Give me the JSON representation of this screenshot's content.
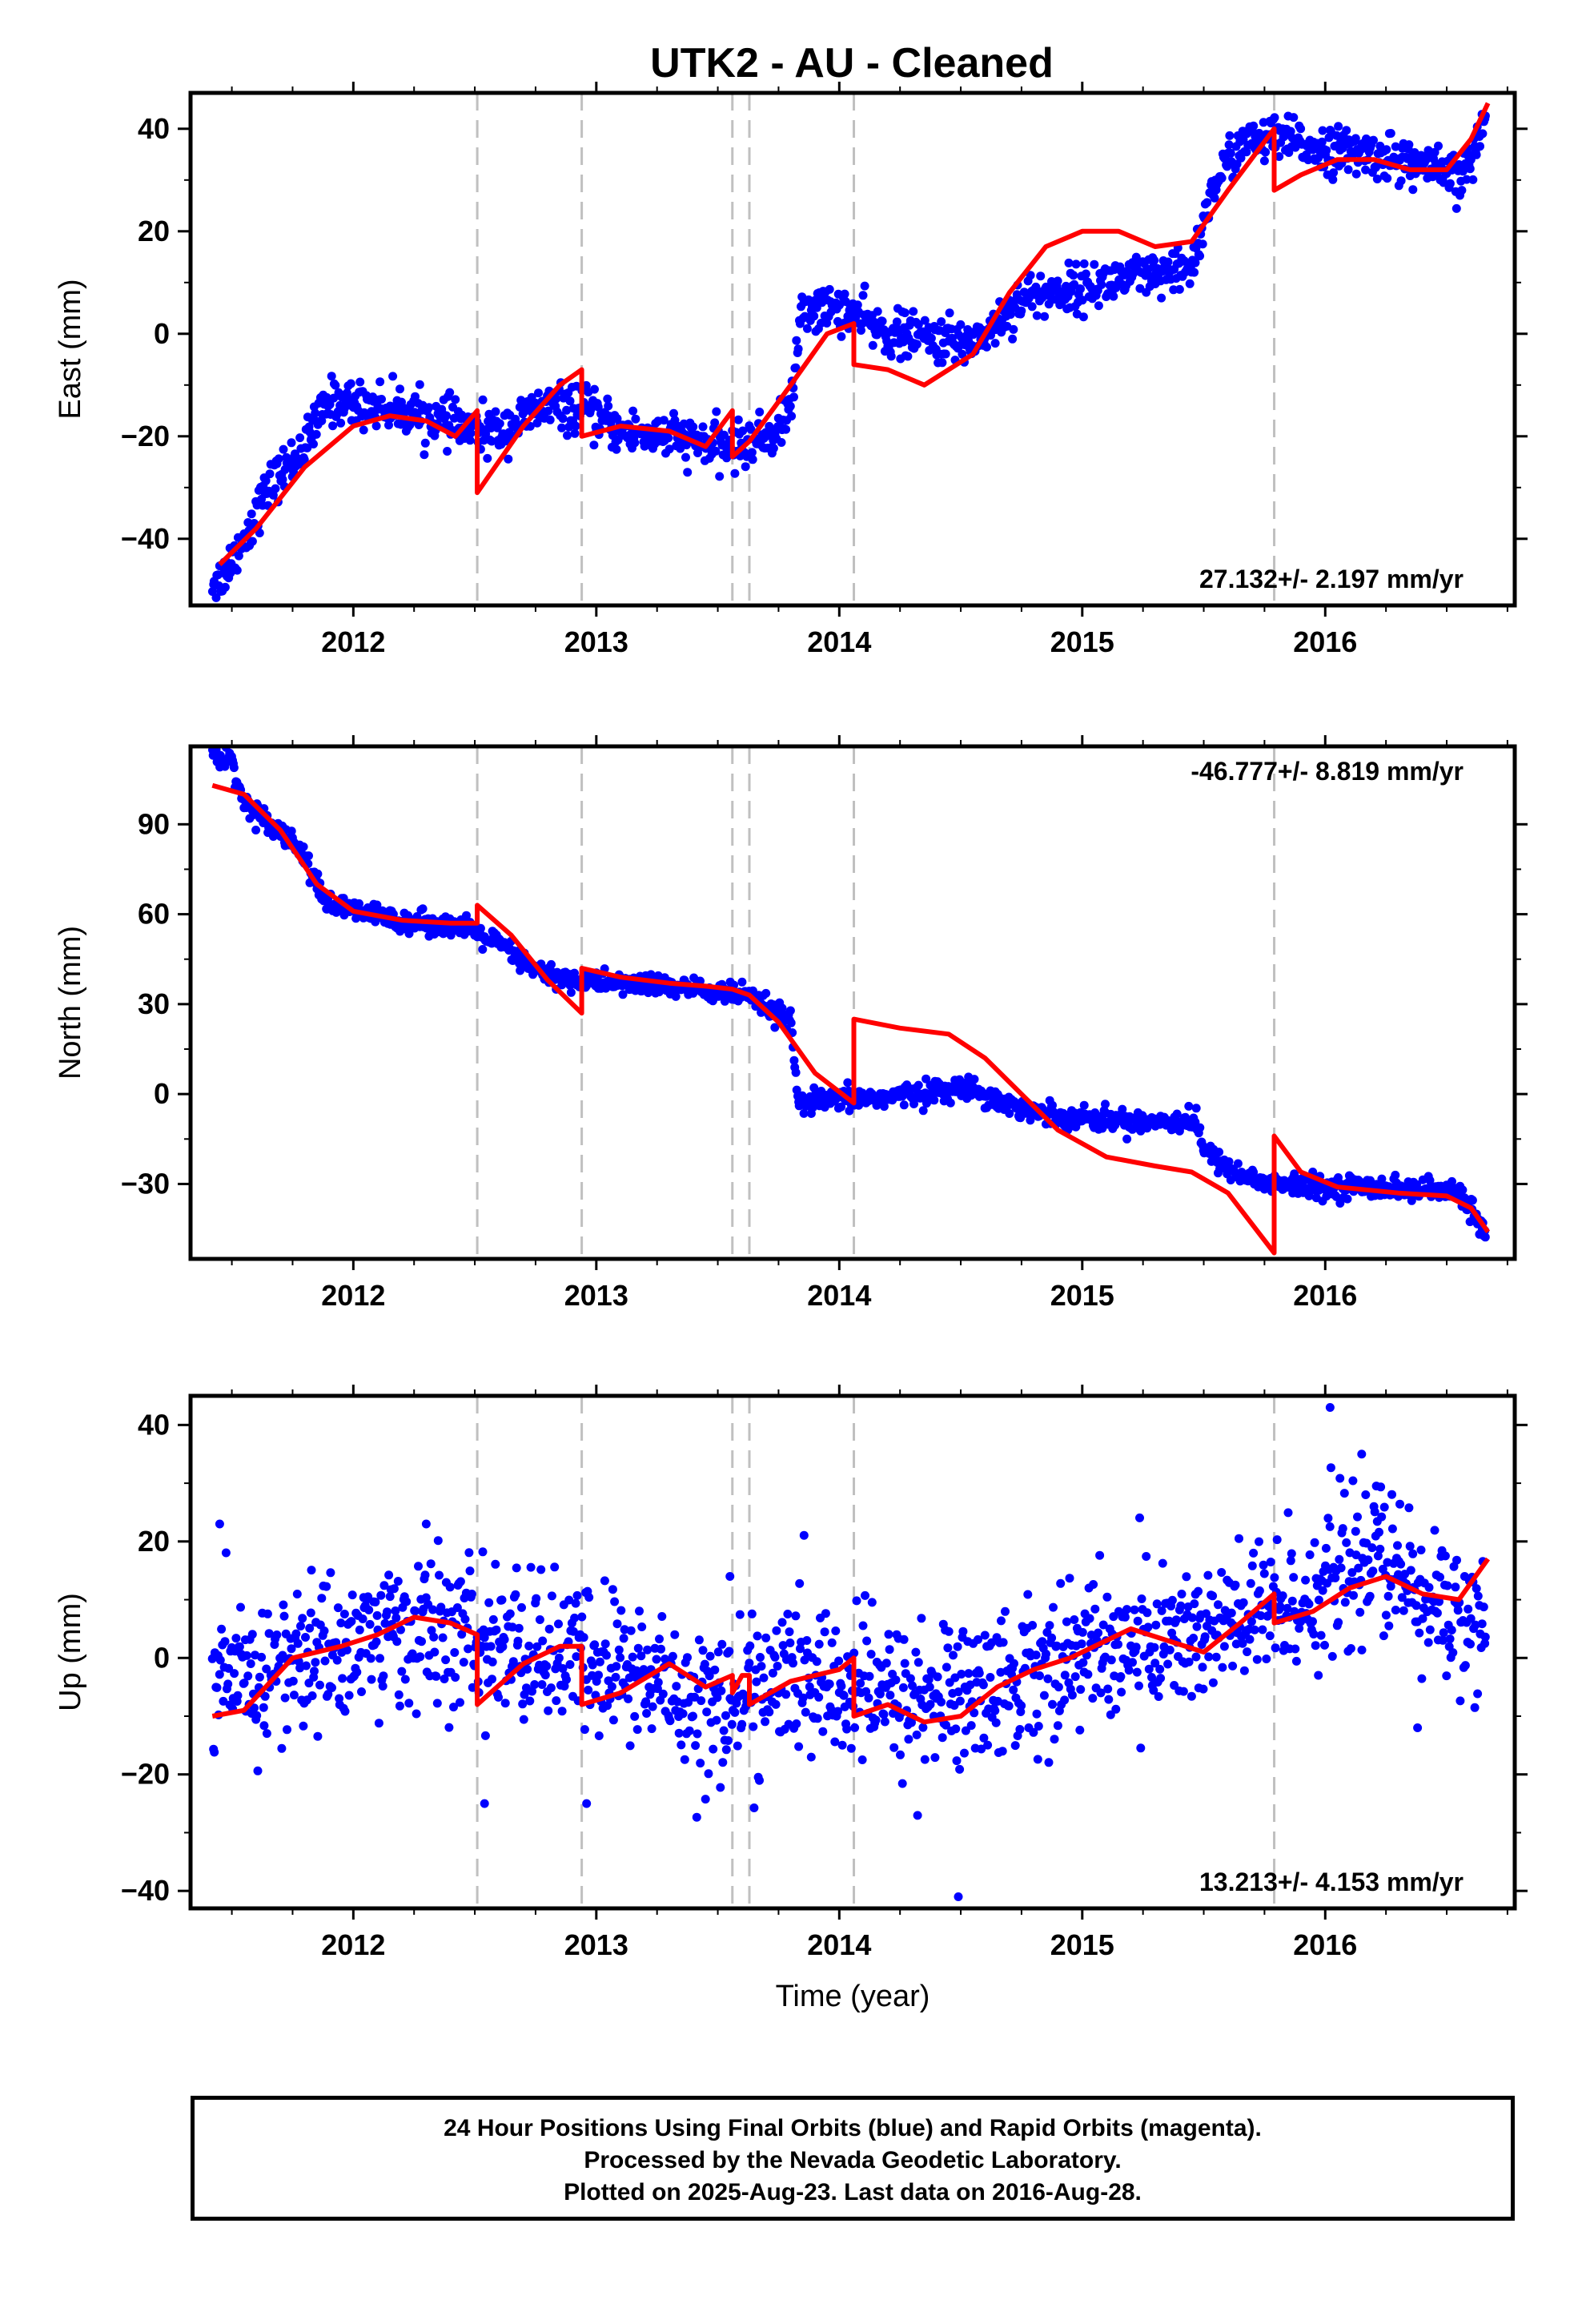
{
  "title": "UTK2  - AU - Cleaned",
  "caption": {
    "line1": "24 Hour Positions Using Final Orbits (blue) and Rapid Orbits (magenta).",
    "line2": "Processed by the Nevada Geodetic Laboratory.",
    "line3": "Plotted on 2025-Aug-23. Last data on 2016-Aug-28."
  },
  "colors": {
    "data_points": "#0000ff",
    "model_fit": "#ff0000",
    "offset_lines": "#c0c0c0",
    "frame": "#000000"
  },
  "chart_data": [
    {
      "type": "scatter",
      "component": "east",
      "ylabel": "East (mm)",
      "xlabel": "",
      "xlim": [
        2011.33,
        2016.78
      ],
      "ylim": [
        -53,
        47
      ],
      "xticks": [
        2012,
        2013,
        2014,
        2015,
        2016
      ],
      "yticks": [
        -40,
        -20,
        0,
        20,
        40
      ],
      "rate_label": "27.132+/- 2.197 mm/yr",
      "rate_position": "bottom-right",
      "offset_epochs": [
        2012.51,
        2012.94,
        2013.56,
        2013.63,
        2014.06,
        2015.79
      ],
      "observed_trend": [
        [
          2011.45,
          -48
        ],
        [
          2011.55,
          -40
        ],
        [
          2011.65,
          -30
        ],
        [
          2011.8,
          -22
        ],
        [
          2011.9,
          -13
        ],
        [
          2012.1,
          -14
        ],
        [
          2012.3,
          -16
        ],
        [
          2012.5,
          -19
        ],
        [
          2012.6,
          -19
        ],
        [
          2012.8,
          -14
        ],
        [
          2012.95,
          -15
        ],
        [
          2013.1,
          -19
        ],
        [
          2013.3,
          -20
        ],
        [
          2013.5,
          -22
        ],
        [
          2013.6,
          -22
        ],
        [
          2013.75,
          -19
        ],
        [
          2013.8,
          -14
        ],
        [
          2013.85,
          5
        ],
        [
          2014.0,
          5
        ],
        [
          2014.2,
          0
        ],
        [
          2014.4,
          -1
        ],
        [
          2014.5,
          -2
        ],
        [
          2014.6,
          0
        ],
        [
          2014.75,
          7
        ],
        [
          2015.0,
          9
        ],
        [
          2015.2,
          11
        ],
        [
          2015.35,
          11
        ],
        [
          2015.45,
          13
        ],
        [
          2015.55,
          30
        ],
        [
          2015.65,
          37
        ],
        [
          2015.79,
          38
        ],
        [
          2016.0,
          36
        ],
        [
          2016.2,
          35
        ],
        [
          2016.4,
          33
        ],
        [
          2016.55,
          30
        ],
        [
          2016.62,
          36
        ],
        [
          2016.66,
          42
        ]
      ],
      "noise_mm": 2.2,
      "model": [
        [
          2011.45,
          -45
        ],
        [
          2011.6,
          -38
        ],
        [
          2011.8,
          -26
        ],
        [
          2012.0,
          -18
        ],
        [
          2012.15,
          -16
        ],
        [
          2012.3,
          -17
        ],
        [
          2012.42,
          -20
        ],
        [
          2012.51,
          -15
        ],
        [
          2012.51,
          -31
        ],
        [
          2012.7,
          -18
        ],
        [
          2012.85,
          -10
        ],
        [
          2012.94,
          -7
        ],
        [
          2012.94,
          -20
        ],
        [
          2013.1,
          -18
        ],
        [
          2013.3,
          -19
        ],
        [
          2013.45,
          -22
        ],
        [
          2013.56,
          -15
        ],
        [
          2013.56,
          -24
        ],
        [
          2013.63,
          -21
        ],
        [
          2013.63,
          -21
        ],
        [
          2013.8,
          -10
        ],
        [
          2013.95,
          0
        ],
        [
          2014.06,
          2
        ],
        [
          2014.06,
          -6
        ],
        [
          2014.2,
          -7
        ],
        [
          2014.35,
          -10
        ],
        [
          2014.55,
          -4
        ],
        [
          2014.7,
          8
        ],
        [
          2014.85,
          17
        ],
        [
          2015.0,
          20
        ],
        [
          2015.15,
          20
        ],
        [
          2015.3,
          17
        ],
        [
          2015.45,
          18
        ],
        [
          2015.6,
          28
        ],
        [
          2015.79,
          40
        ],
        [
          2015.79,
          28
        ],
        [
          2015.9,
          31
        ],
        [
          2016.05,
          34
        ],
        [
          2016.2,
          34
        ],
        [
          2016.35,
          32
        ],
        [
          2016.5,
          32
        ],
        [
          2016.6,
          38
        ],
        [
          2016.67,
          45
        ]
      ]
    },
    {
      "type": "scatter",
      "component": "north",
      "ylabel": "North (mm)",
      "xlabel": "",
      "xlim": [
        2011.33,
        2016.78
      ],
      "ylim": [
        -55,
        116
      ],
      "xticks": [
        2012,
        2013,
        2014,
        2015,
        2016
      ],
      "yticks": [
        -30,
        0,
        30,
        60,
        90
      ],
      "rate_label": "-46.777+/- 8.819 mm/yr",
      "rate_position": "top-right",
      "offset_epochs": [
        2012.51,
        2012.94,
        2013.56,
        2013.63,
        2014.06,
        2015.79
      ],
      "observed_trend": [
        [
          2011.42,
          114
        ],
        [
          2011.5,
          111
        ],
        [
          2011.55,
          97
        ],
        [
          2011.7,
          88
        ],
        [
          2011.8,
          80
        ],
        [
          2011.88,
          64
        ],
        [
          2012.0,
          61
        ],
        [
          2012.2,
          58
        ],
        [
          2012.4,
          56
        ],
        [
          2012.5,
          54
        ],
        [
          2012.6,
          50
        ],
        [
          2012.75,
          41
        ],
        [
          2012.9,
          38
        ],
        [
          2013.1,
          37
        ],
        [
          2013.3,
          36
        ],
        [
          2013.5,
          34
        ],
        [
          2013.6,
          33
        ],
        [
          2013.75,
          27
        ],
        [
          2013.8,
          24
        ],
        [
          2013.83,
          -3
        ],
        [
          2014.0,
          -2
        ],
        [
          2014.2,
          -1
        ],
        [
          2014.4,
          1
        ],
        [
          2014.55,
          2
        ],
        [
          2014.65,
          -2
        ],
        [
          2014.8,
          -6
        ],
        [
          2015.0,
          -8
        ],
        [
          2015.2,
          -9
        ],
        [
          2015.35,
          -9
        ],
        [
          2015.47,
          -9
        ],
        [
          2015.5,
          -19
        ],
        [
          2015.65,
          -27
        ],
        [
          2015.79,
          -30
        ],
        [
          2016.0,
          -31
        ],
        [
          2016.2,
          -31
        ],
        [
          2016.4,
          -32
        ],
        [
          2016.55,
          -33
        ],
        [
          2016.62,
          -40
        ],
        [
          2016.67,
          -50
        ]
      ],
      "noise_mm": 1.8,
      "model": [
        [
          2011.42,
          103
        ],
        [
          2011.55,
          100
        ],
        [
          2011.7,
          88
        ],
        [
          2011.85,
          70
        ],
        [
          2012.0,
          61
        ],
        [
          2012.2,
          58
        ],
        [
          2012.4,
          57
        ],
        [
          2012.51,
          57
        ],
        [
          2012.51,
          63
        ],
        [
          2012.65,
          53
        ],
        [
          2012.8,
          38
        ],
        [
          2012.94,
          27
        ],
        [
          2012.94,
          42
        ],
        [
          2013.1,
          39
        ],
        [
          2013.3,
          37
        ],
        [
          2013.45,
          36
        ],
        [
          2013.56,
          35
        ],
        [
          2013.63,
          33
        ],
        [
          2013.75,
          24
        ],
        [
          2013.9,
          7
        ],
        [
          2014.06,
          -3
        ],
        [
          2014.06,
          25
        ],
        [
          2014.25,
          22
        ],
        [
          2014.45,
          20
        ],
        [
          2014.6,
          12
        ],
        [
          2014.75,
          0
        ],
        [
          2014.9,
          -12
        ],
        [
          2015.1,
          -21
        ],
        [
          2015.3,
          -24
        ],
        [
          2015.45,
          -26
        ],
        [
          2015.6,
          -33
        ],
        [
          2015.79,
          -53
        ],
        [
          2015.79,
          -14
        ],
        [
          2015.9,
          -26
        ],
        [
          2016.05,
          -31
        ],
        [
          2016.3,
          -33
        ],
        [
          2016.5,
          -34
        ],
        [
          2016.6,
          -38
        ],
        [
          2016.67,
          -46
        ]
      ]
    },
    {
      "type": "scatter",
      "component": "up",
      "ylabel": "Up (mm)",
      "xlabel": "Time (year)",
      "xlim": [
        2011.33,
        2016.78
      ],
      "ylim": [
        -43,
        45
      ],
      "xticks": [
        2012,
        2013,
        2014,
        2015,
        2016
      ],
      "yticks": [
        -40,
        -20,
        0,
        20,
        40
      ],
      "rate_label": "13.213+/- 4.153 mm/yr",
      "rate_position": "bottom-right",
      "offset_epochs": [
        2012.51,
        2012.94,
        2013.56,
        2013.63,
        2014.06,
        2015.79
      ],
      "observed_trend": [
        [
          2011.42,
          -6
        ],
        [
          2011.8,
          0
        ],
        [
          2012.2,
          5
        ],
        [
          2012.5,
          3
        ],
        [
          2012.9,
          0
        ],
        [
          2013.2,
          -3
        ],
        [
          2013.5,
          -9
        ],
        [
          2013.8,
          -3
        ],
        [
          2014.1,
          -6
        ],
        [
          2014.4,
          -7
        ],
        [
          2014.7,
          -4
        ],
        [
          2015.0,
          1
        ],
        [
          2015.3,
          3
        ],
        [
          2015.6,
          5
        ],
        [
          2015.9,
          10
        ],
        [
          2016.2,
          18
        ],
        [
          2016.4,
          10
        ],
        [
          2016.67,
          6
        ]
      ],
      "noise_mm": 6.5,
      "outliers": [
        [
          2016.02,
          43
        ],
        [
          2014.49,
          -41
        ],
        [
          2012.54,
          -25
        ],
        [
          2012.96,
          -25
        ],
        [
          2011.45,
          23
        ],
        [
          2012.3,
          23
        ],
        [
          2013.55,
          14
        ],
        [
          2016.15,
          35
        ],
        [
          2016.38,
          -12
        ]
      ],
      "model": [
        [
          2011.42,
          -10
        ],
        [
          2011.55,
          -9
        ],
        [
          2011.75,
          0
        ],
        [
          2011.95,
          2
        ],
        [
          2012.1,
          4
        ],
        [
          2012.25,
          7
        ],
        [
          2012.4,
          6
        ],
        [
          2012.51,
          4
        ],
        [
          2012.51,
          -8
        ],
        [
          2012.7,
          -1
        ],
        [
          2012.85,
          2
        ],
        [
          2012.94,
          2
        ],
        [
          2012.94,
          -8
        ],
        [
          2013.1,
          -6
        ],
        [
          2013.3,
          -1
        ],
        [
          2013.45,
          -5
        ],
        [
          2013.56,
          -3
        ],
        [
          2013.56,
          -6
        ],
        [
          2013.6,
          -3
        ],
        [
          2013.63,
          -3
        ],
        [
          2013.63,
          -8
        ],
        [
          2013.8,
          -4
        ],
        [
          2014.0,
          -2
        ],
        [
          2014.06,
          0
        ],
        [
          2014.06,
          -10
        ],
        [
          2014.2,
          -8
        ],
        [
          2014.35,
          -11
        ],
        [
          2014.5,
          -10
        ],
        [
          2014.65,
          -5
        ],
        [
          2014.8,
          -2
        ],
        [
          2014.95,
          0
        ],
        [
          2015.1,
          3
        ],
        [
          2015.2,
          5
        ],
        [
          2015.35,
          3
        ],
        [
          2015.5,
          1
        ],
        [
          2015.65,
          6
        ],
        [
          2015.79,
          11
        ],
        [
          2015.79,
          6
        ],
        [
          2015.95,
          8
        ],
        [
          2016.1,
          12
        ],
        [
          2016.25,
          14
        ],
        [
          2016.4,
          11
        ],
        [
          2016.55,
          10
        ],
        [
          2016.67,
          17
        ]
      ]
    }
  ]
}
